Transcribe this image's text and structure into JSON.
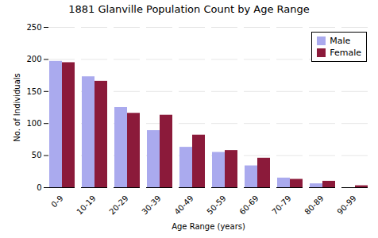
{
  "chart_data": {
    "type": "bar",
    "title": "1881 Glanville Population Count by Age Range",
    "xlabel": "Age Range (years)",
    "ylabel": "No. of Individuals",
    "categories": [
      "0-9",
      "10-19",
      "20-29",
      "30-39",
      "40-49",
      "50-59",
      "60-69",
      "70-79",
      "80-89",
      "90-99"
    ],
    "series": [
      {
        "name": "Male",
        "color": "#aaaaee",
        "values": [
          197,
          173,
          125,
          89,
          63,
          55,
          34,
          15,
          6,
          0
        ]
      },
      {
        "name": "Female",
        "color": "#8b1a3a",
        "values": [
          195,
          166,
          116,
          113,
          82,
          58,
          46,
          13,
          10,
          3
        ]
      }
    ],
    "ylim": [
      0,
      250
    ],
    "yticks": [
      0,
      50,
      100,
      150,
      200,
      250
    ],
    "grid": true,
    "legend": "upper right"
  }
}
